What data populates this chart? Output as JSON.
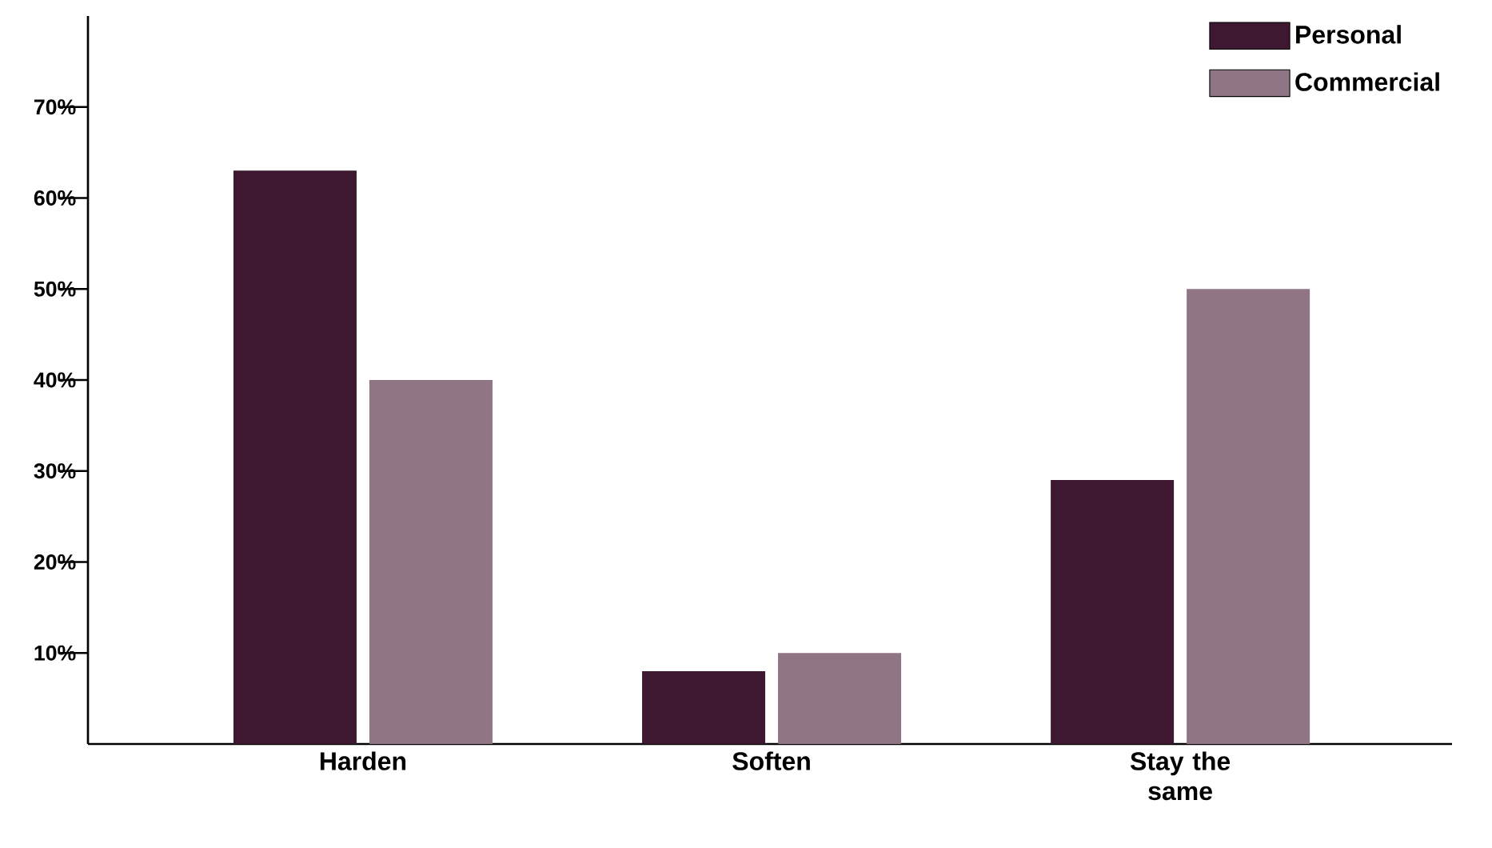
{
  "chart_data": {
    "type": "bar",
    "categories": [
      "Harden",
      "Soften",
      "Stay the same"
    ],
    "series": [
      {
        "name": "Personal",
        "color": "#3d1830",
        "values": [
          63,
          8,
          29
        ]
      },
      {
        "name": "Commercial",
        "color": "#907585",
        "values": [
          40,
          10,
          50
        ]
      }
    ],
    "ylim": [
      0,
      80
    ],
    "yticks": [
      {
        "value": 10,
        "label": "10%"
      },
      {
        "value": 20,
        "label": "20%"
      },
      {
        "value": 30,
        "label": "30%"
      },
      {
        "value": 40,
        "label": "40%"
      },
      {
        "value": 50,
        "label": "50%"
      },
      {
        "value": 60,
        "label": "60%"
      },
      {
        "value": 70,
        "label": "70%"
      }
    ],
    "grid": false,
    "legend": "top right"
  }
}
